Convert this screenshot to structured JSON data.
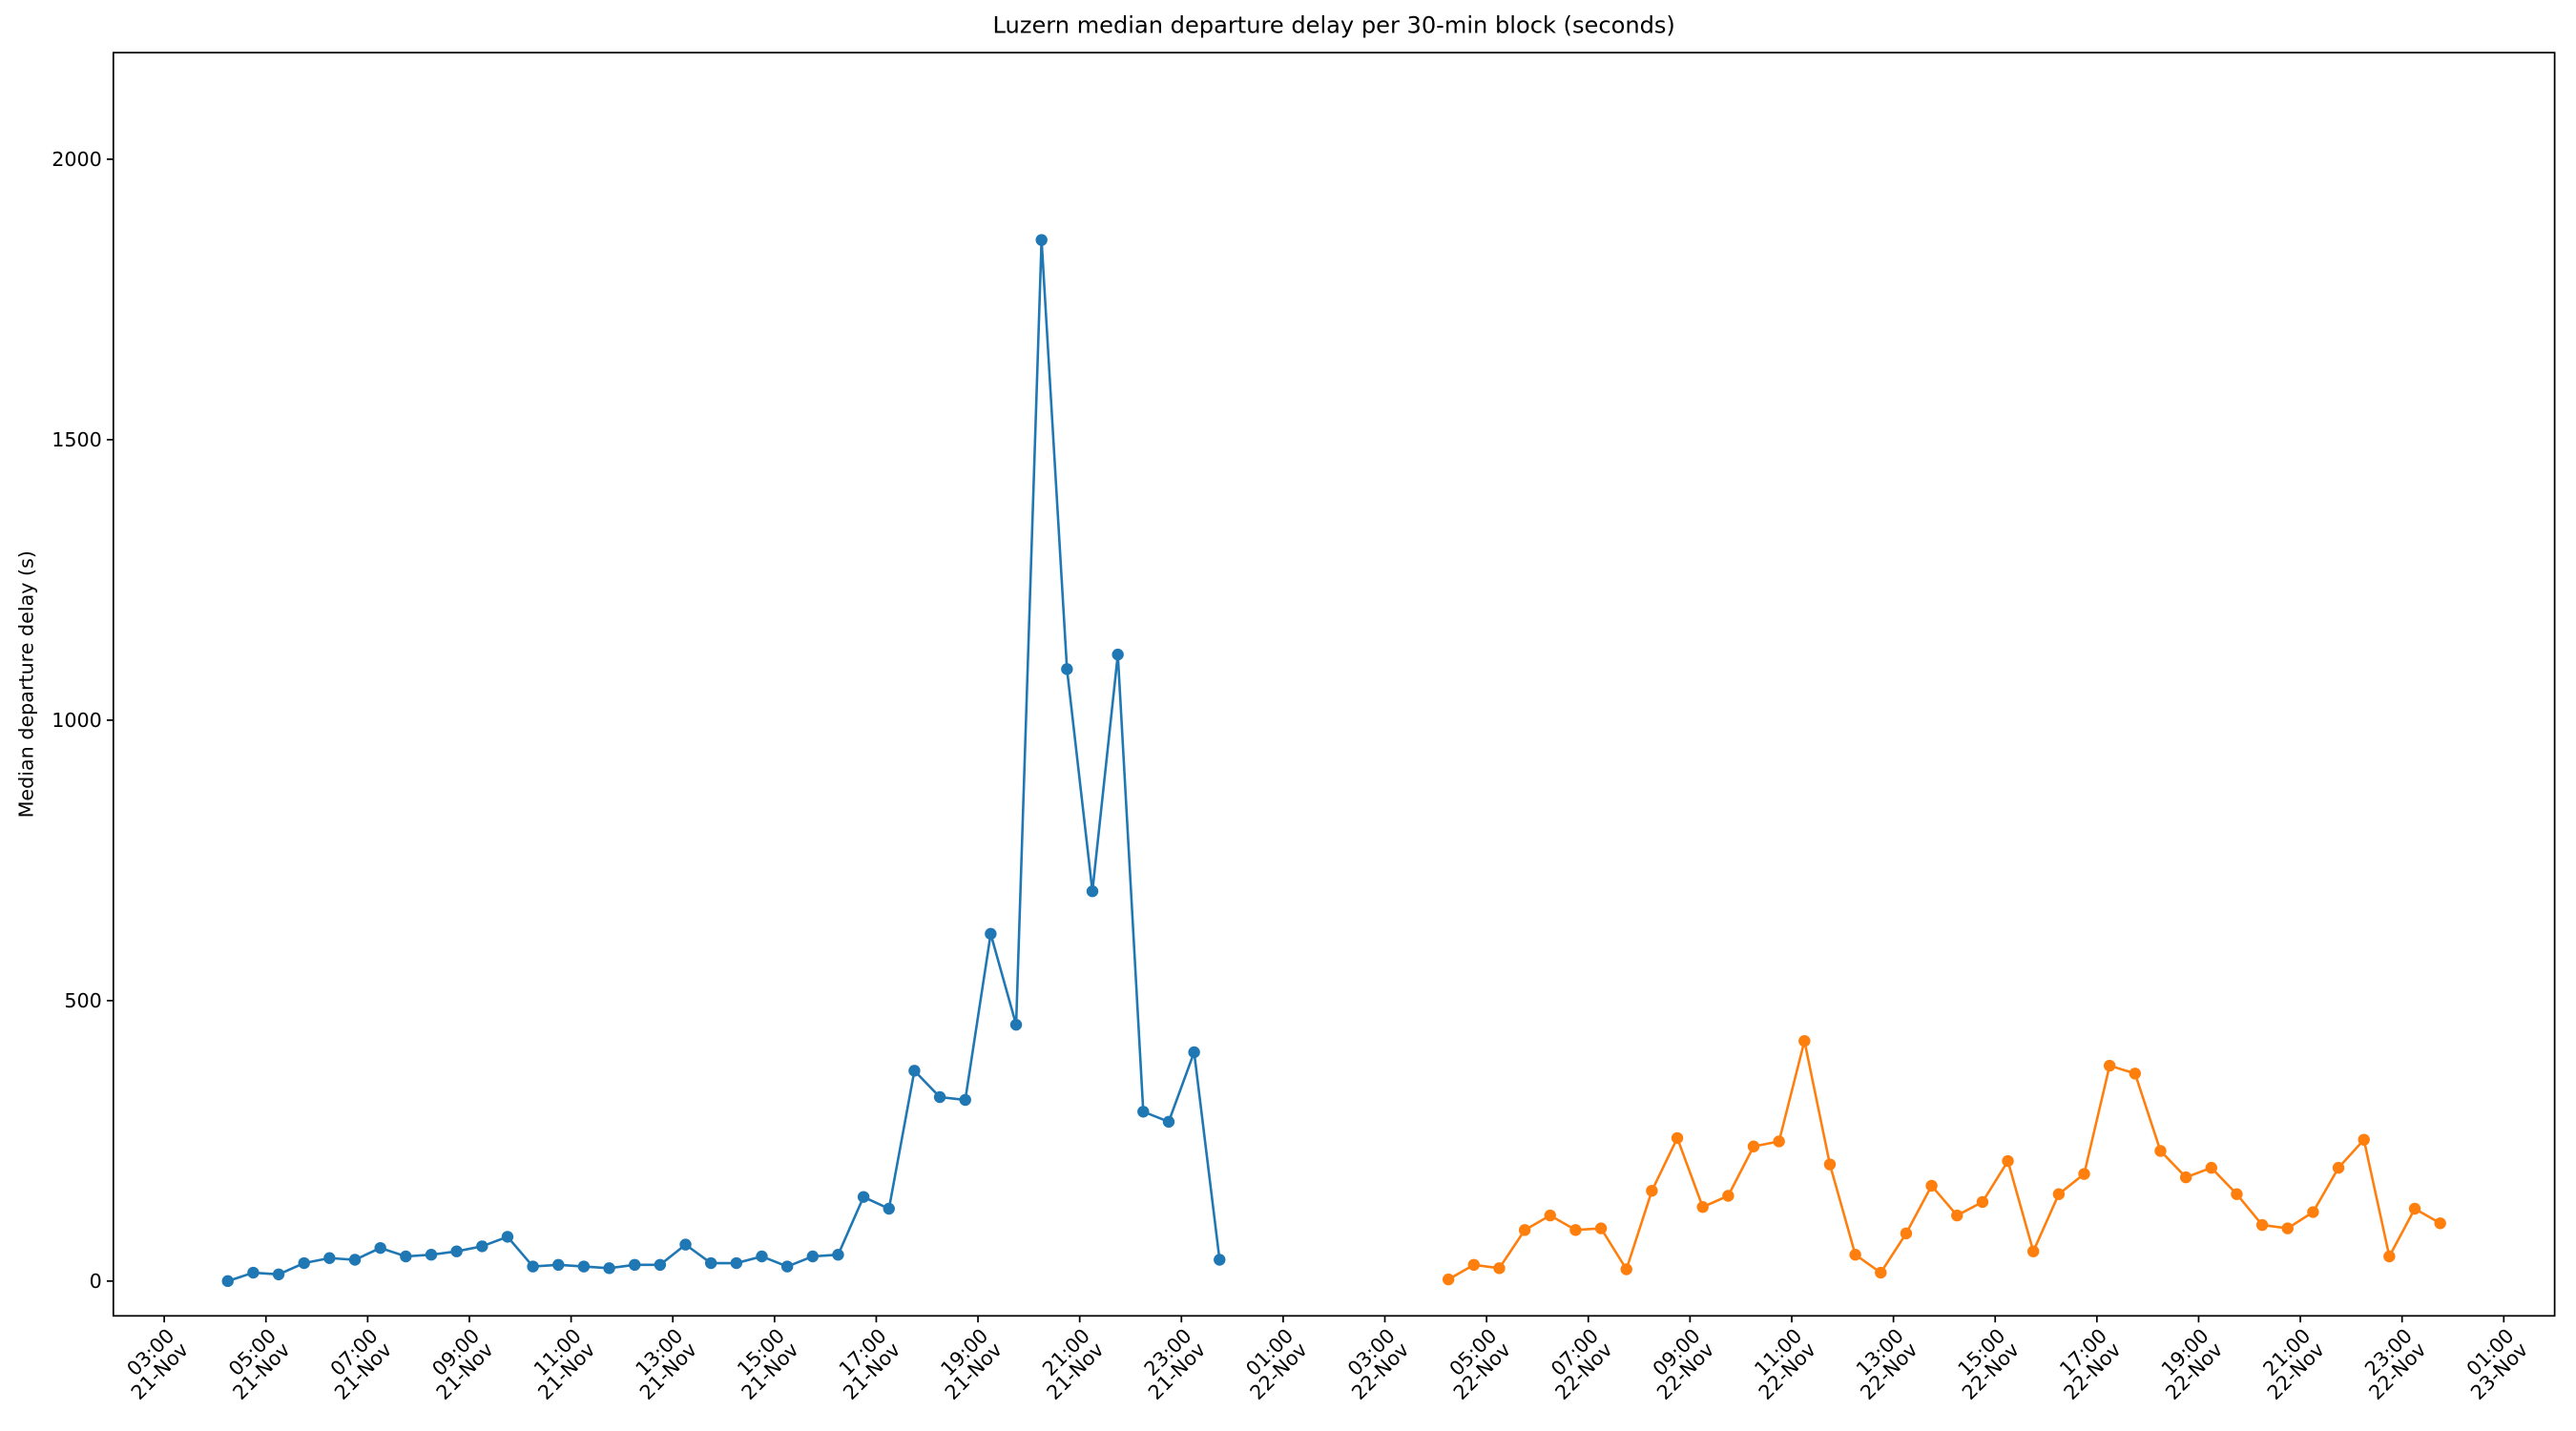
{
  "chart_data": {
    "type": "line",
    "title": "Luzern median departure delay per 30-min block (seconds)",
    "y_label": "Median departure delay (s)",
    "series": [
      {
        "color": "#1f77b4",
        "x": [
          "21-Nov 04:15",
          "21-Nov 04:45",
          "21-Nov 05:15",
          "21-Nov 05:45",
          "21-Nov 06:15",
          "21-Nov 06:45",
          "21-Nov 07:15",
          "21-Nov 07:45",
          "21-Nov 08:15",
          "21-Nov 08:45",
          "21-Nov 09:15",
          "21-Nov 09:45",
          "21-Nov 10:15",
          "21-Nov 10:45",
          "21-Nov 11:15",
          "21-Nov 11:45",
          "21-Nov 12:15",
          "21-Nov 12:45",
          "21-Nov 13:15",
          "21-Nov 13:45",
          "21-Nov 14:15",
          "21-Nov 14:45",
          "21-Nov 15:15",
          "21-Nov 15:45",
          "21-Nov 16:15",
          "21-Nov 16:45",
          "21-Nov 17:15",
          "21-Nov 17:45",
          "21-Nov 18:15",
          "21-Nov 18:45",
          "21-Nov 19:15",
          "21-Nov 19:45",
          "21-Nov 20:15",
          "21-Nov 20:45",
          "21-Nov 21:15",
          "21-Nov 21:45",
          "21-Nov 22:15",
          "21-Nov 22:45",
          "21-Nov 23:15",
          "21-Nov 23:45"
        ],
        "values": [
          0,
          15,
          12,
          32,
          41,
          38,
          59,
          44,
          47,
          53,
          62,
          79,
          26,
          29,
          26,
          23,
          29,
          29,
          65,
          32,
          32,
          44,
          26,
          44,
          47,
          150,
          129,
          375,
          328,
          323,
          619,
          457,
          1856,
          1091,
          695,
          1117,
          302,
          284,
          408,
          38
        ]
      },
      {
        "color": "#ff7f0e",
        "x": [
          "22-Nov 04:15",
          "22-Nov 04:45",
          "22-Nov 05:15",
          "22-Nov 05:45",
          "22-Nov 06:15",
          "22-Nov 06:45",
          "22-Nov 07:15",
          "22-Nov 07:45",
          "22-Nov 08:15",
          "22-Nov 08:45",
          "22-Nov 09:15",
          "22-Nov 09:45",
          "22-Nov 10:15",
          "22-Nov 10:45",
          "22-Nov 11:15",
          "22-Nov 11:45",
          "22-Nov 12:15",
          "22-Nov 12:45",
          "22-Nov 13:15",
          "22-Nov 13:45",
          "22-Nov 14:15",
          "22-Nov 14:45",
          "22-Nov 15:15",
          "22-Nov 15:45",
          "22-Nov 16:15",
          "22-Nov 16:45",
          "22-Nov 17:15",
          "22-Nov 17:45",
          "22-Nov 18:15",
          "22-Nov 18:45",
          "22-Nov 19:15",
          "22-Nov 19:45",
          "22-Nov 20:15",
          "22-Nov 20:45",
          "22-Nov 21:15",
          "22-Nov 21:45",
          "22-Nov 22:15",
          "22-Nov 22:45",
          "22-Nov 23:15",
          "22-Nov 23:45"
        ],
        "values": [
          3,
          29,
          23,
          91,
          117,
          91,
          94,
          21,
          161,
          255,
          132,
          152,
          240,
          249,
          428,
          208,
          47,
          15,
          85,
          170,
          117,
          141,
          214,
          53,
          155,
          191,
          384,
          370,
          232,
          185,
          202,
          155,
          100,
          94,
          123,
          202,
          252,
          44,
          129,
          103
        ]
      }
    ],
    "xlim": [
      "21-Nov 02:00",
      "23-Nov 02:00"
    ],
    "xticks": [
      {
        "value": "21-Nov 03:00",
        "label": "03:00\n21-Nov"
      },
      {
        "value": "21-Nov 05:00",
        "label": "05:00\n21-Nov"
      },
      {
        "value": "21-Nov 07:00",
        "label": "07:00\n21-Nov"
      },
      {
        "value": "21-Nov 09:00",
        "label": "09:00\n21-Nov"
      },
      {
        "value": "21-Nov 11:00",
        "label": "11:00\n21-Nov"
      },
      {
        "value": "21-Nov 13:00",
        "label": "13:00\n21-Nov"
      },
      {
        "value": "21-Nov 15:00",
        "label": "15:00\n21-Nov"
      },
      {
        "value": "21-Nov 17:00",
        "label": "17:00\n21-Nov"
      },
      {
        "value": "21-Nov 19:00",
        "label": "19:00\n21-Nov"
      },
      {
        "value": "21-Nov 21:00",
        "label": "21:00\n21-Nov"
      },
      {
        "value": "21-Nov 23:00",
        "label": "23:00\n21-Nov"
      },
      {
        "value": "22-Nov 01:00",
        "label": "01:00\n22-Nov"
      },
      {
        "value": "22-Nov 03:00",
        "label": "03:00\n22-Nov"
      },
      {
        "value": "22-Nov 05:00",
        "label": "05:00\n22-Nov"
      },
      {
        "value": "22-Nov 07:00",
        "label": "07:00\n22-Nov"
      },
      {
        "value": "22-Nov 09:00",
        "label": "09:00\n22-Nov"
      },
      {
        "value": "22-Nov 11:00",
        "label": "11:00\n22-Nov"
      },
      {
        "value": "22-Nov 13:00",
        "label": "13:00\n22-Nov"
      },
      {
        "value": "22-Nov 15:00",
        "label": "15:00\n22-Nov"
      },
      {
        "value": "22-Nov 17:00",
        "label": "17:00\n22-Nov"
      },
      {
        "value": "22-Nov 19:00",
        "label": "19:00\n22-Nov"
      },
      {
        "value": "22-Nov 21:00",
        "label": "21:00\n22-Nov"
      },
      {
        "value": "22-Nov 23:00",
        "label": "23:00\n22-Nov"
      },
      {
        "value": "23-Nov 01:00",
        "label": "01:00\n23-Nov"
      }
    ],
    "ylim": [
      -62,
      2190
    ],
    "yticks": [
      0,
      500,
      1000,
      1500,
      2000
    ],
    "grid": false
  }
}
